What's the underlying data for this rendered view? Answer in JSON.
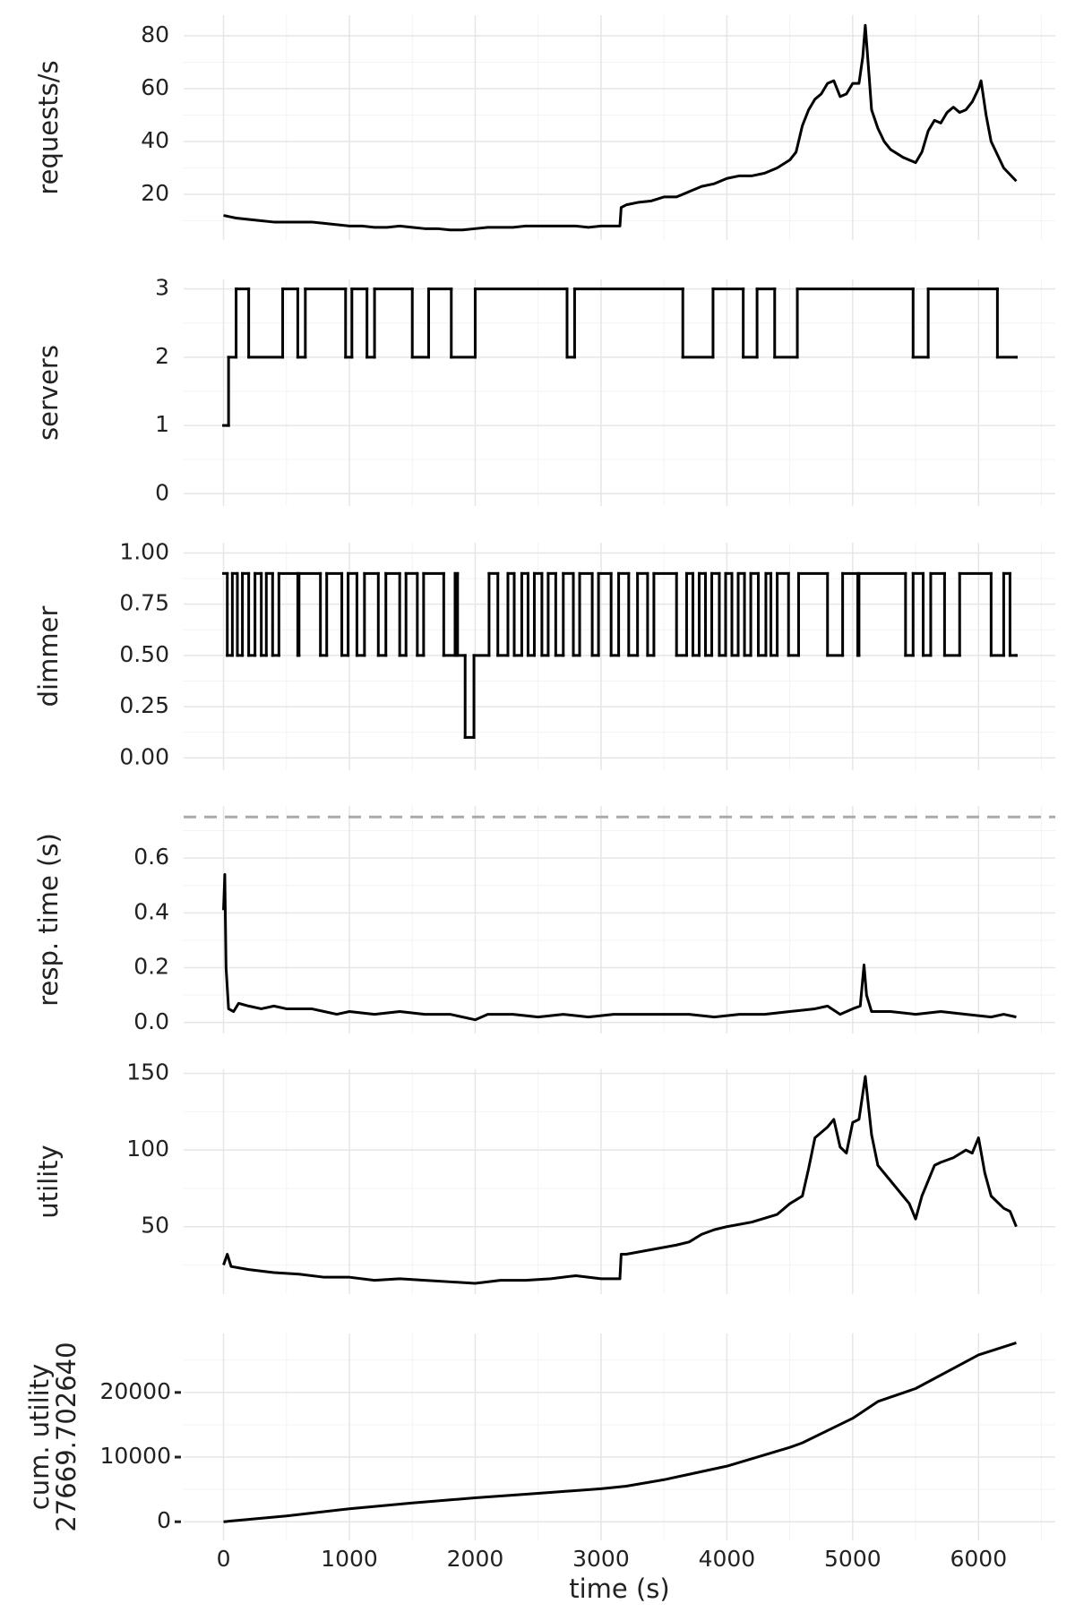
{
  "chart_data": [
    {
      "type": "line",
      "ylabel": "requests/s",
      "color": "#000000",
      "xlim": [
        -317,
        6610
      ],
      "xticks": [
        0,
        1000,
        2000,
        3000,
        4000,
        5000,
        6000
      ],
      "xminor": [
        500,
        1500,
        2500,
        3500,
        4500,
        5500,
        6500
      ],
      "ylim": [
        2.7,
        87.8
      ],
      "yticks": [
        20,
        40,
        60,
        80
      ],
      "yminor": [
        10,
        30,
        50,
        70
      ],
      "x": [
        0,
        100,
        200,
        300,
        400,
        500,
        600,
        700,
        800,
        900,
        1000,
        1100,
        1200,
        1300,
        1400,
        1500,
        1600,
        1700,
        1800,
        1900,
        2000,
        2100,
        2200,
        2300,
        2400,
        2500,
        2600,
        2700,
        2800,
        2900,
        3000,
        3100,
        3150,
        3160,
        3200,
        3300,
        3400,
        3500,
        3600,
        3700,
        3800,
        3900,
        4000,
        4100,
        4200,
        4300,
        4400,
        4500,
        4550,
        4600,
        4650,
        4700,
        4750,
        4800,
        4850,
        4900,
        4950,
        5000,
        5050,
        5080,
        5100,
        5130,
        5150,
        5200,
        5250,
        5300,
        5400,
        5500,
        5550,
        5600,
        5650,
        5700,
        5750,
        5800,
        5850,
        5900,
        5950,
        6000,
        6020,
        6060,
        6100,
        6150,
        6200,
        6300
      ],
      "values": [
        12,
        11,
        10.5,
        10,
        9.5,
        9.5,
        9.5,
        9.5,
        9,
        8.5,
        8,
        8,
        7.5,
        7.5,
        8,
        7.5,
        7,
        7,
        6.5,
        6.5,
        7,
        7.5,
        7.5,
        7.5,
        8,
        8,
        8,
        8,
        8,
        7.5,
        8,
        8,
        8,
        15,
        16,
        17,
        17.5,
        19,
        19,
        21,
        23,
        24,
        26,
        27,
        27,
        28,
        30,
        33,
        36,
        46,
        52,
        56,
        58,
        62,
        63,
        57,
        58,
        62,
        62,
        72,
        84,
        65,
        52,
        45,
        40,
        37,
        34,
        32,
        36,
        44,
        48,
        47,
        51,
        53,
        51,
        52,
        55,
        60,
        63,
        50,
        40,
        35,
        30,
        25
      ]
    },
    {
      "type": "line",
      "step": "post",
      "ylabel": "servers",
      "color": "#000000",
      "xlim": [
        -317,
        6610
      ],
      "xticks": [
        0,
        1000,
        2000,
        3000,
        4000,
        5000,
        6000
      ],
      "xminor": [
        500,
        1500,
        2500,
        3500,
        4500,
        5500,
        6500
      ],
      "ylim": [
        -0.18,
        3.14
      ],
      "yticks": [
        0,
        1,
        2,
        3
      ],
      "yminor": [
        0.5,
        1.5,
        2.5
      ],
      "x": [
        0,
        40,
        100,
        200,
        470,
        590,
        650,
        970,
        1020,
        1140,
        1200,
        1500,
        1630,
        1810,
        2000,
        2730,
        2790,
        3650,
        3890,
        4130,
        4240,
        4380,
        4560,
        5480,
        5600,
        6150,
        6300
      ],
      "values": [
        1,
        2,
        3,
        2,
        3,
        2,
        3,
        2,
        3,
        2,
        3,
        2,
        3,
        2,
        3,
        2,
        3,
        2,
        3,
        2,
        3,
        2,
        3,
        2,
        3,
        2,
        2
      ]
    },
    {
      "type": "line",
      "step": "post",
      "ylabel": "dimmer",
      "color": "#000000",
      "xlim": [
        -317,
        6610
      ],
      "xticks": [
        0,
        1000,
        2000,
        3000,
        4000,
        5000,
        6000
      ],
      "xminor": [
        500,
        1500,
        2500,
        3500,
        4500,
        5500,
        6500
      ],
      "ylim": [
        -0.06,
        1.05
      ],
      "yticks": [
        {
          "value": 0,
          "label": "0.00"
        },
        {
          "value": 0.25,
          "label": "0.25"
        },
        {
          "value": 0.5,
          "label": "0.50"
        },
        {
          "value": 0.75,
          "label": "0.75"
        },
        {
          "value": 1,
          "label": "1.00"
        }
      ],
      "yminor": [
        0.125,
        0.375,
        0.625,
        0.875
      ],
      "x": [
        0,
        30,
        70,
        110,
        150,
        200,
        250,
        300,
        340,
        390,
        440,
        590,
        600,
        770,
        820,
        940,
        990,
        1060,
        1120,
        1230,
        1290,
        1400,
        1450,
        1540,
        1590,
        1750,
        1840,
        1860,
        1920,
        1990,
        2110,
        2180,
        2260,
        2310,
        2370,
        2420,
        2470,
        2530,
        2580,
        2640,
        2700,
        2780,
        2830,
        2930,
        2980,
        3080,
        3140,
        3220,
        3290,
        3370,
        3420,
        3600,
        3680,
        3730,
        3780,
        3830,
        3880,
        3940,
        3990,
        4040,
        4090,
        4140,
        4190,
        4250,
        4310,
        4350,
        4400,
        4490,
        4570,
        4800,
        4920,
        5040,
        5050,
        5420,
        5480,
        5560,
        5620,
        5730,
        5850,
        6100,
        6200,
        6250,
        6300
      ],
      "values": [
        0.9,
        0.5,
        0.9,
        0.5,
        0.9,
        0.5,
        0.9,
        0.5,
        0.9,
        0.5,
        0.9,
        0.5,
        0.9,
        0.5,
        0.9,
        0.5,
        0.9,
        0.5,
        0.9,
        0.5,
        0.9,
        0.5,
        0.9,
        0.5,
        0.9,
        0.5,
        0.9,
        0.5,
        0.1,
        0.5,
        0.9,
        0.5,
        0.9,
        0.5,
        0.9,
        0.5,
        0.9,
        0.5,
        0.9,
        0.5,
        0.9,
        0.5,
        0.9,
        0.5,
        0.9,
        0.5,
        0.9,
        0.5,
        0.9,
        0.5,
        0.9,
        0.5,
        0.9,
        0.5,
        0.9,
        0.5,
        0.9,
        0.5,
        0.9,
        0.5,
        0.9,
        0.5,
        0.9,
        0.5,
        0.9,
        0.5,
        0.9,
        0.5,
        0.9,
        0.5,
        0.9,
        0.5,
        0.9,
        0.5,
        0.9,
        0.5,
        0.9,
        0.5,
        0.9,
        0.5,
        0.9,
        0.5,
        0.5
      ]
    },
    {
      "type": "line",
      "ylabel": "resp. time (s)",
      "color": "#000000",
      "hline": 0.75,
      "hline_color": "#aaaaaa",
      "xlim": [
        -317,
        6610
      ],
      "xticks": [
        0,
        1000,
        2000,
        3000,
        4000,
        5000,
        6000
      ],
      "xminor": [
        500,
        1500,
        2500,
        3500,
        4500,
        5500,
        6500
      ],
      "ylim": [
        -0.04,
        0.79
      ],
      "yticks": [
        {
          "value": 0,
          "label": "0.0"
        },
        {
          "value": 0.2,
          "label": "0.2"
        },
        {
          "value": 0.4,
          "label": "0.4"
        },
        {
          "value": 0.6,
          "label": "0.6"
        }
      ],
      "yminor": [
        0.1,
        0.3,
        0.5,
        0.7
      ],
      "x": [
        0,
        10,
        20,
        40,
        80,
        120,
        200,
        300,
        400,
        500,
        600,
        700,
        800,
        900,
        1000,
        1200,
        1400,
        1600,
        1800,
        2000,
        2100,
        2300,
        2500,
        2700,
        2900,
        3100,
        3300,
        3500,
        3700,
        3900,
        4100,
        4300,
        4500,
        4700,
        4800,
        4900,
        5000,
        5060,
        5090,
        5110,
        5150,
        5300,
        5500,
        5700,
        5900,
        6100,
        6200,
        6300
      ],
      "values": [
        0.41,
        0.54,
        0.2,
        0.05,
        0.04,
        0.07,
        0.06,
        0.05,
        0.06,
        0.05,
        0.05,
        0.05,
        0.04,
        0.03,
        0.04,
        0.03,
        0.04,
        0.03,
        0.03,
        0.01,
        0.03,
        0.03,
        0.02,
        0.03,
        0.02,
        0.03,
        0.03,
        0.03,
        0.03,
        0.02,
        0.03,
        0.03,
        0.04,
        0.05,
        0.06,
        0.03,
        0.05,
        0.06,
        0.21,
        0.1,
        0.04,
        0.04,
        0.03,
        0.04,
        0.03,
        0.02,
        0.03,
        0.02
      ]
    },
    {
      "type": "line",
      "ylabel": "utility",
      "color": "#000000",
      "xlim": [
        -317,
        6610
      ],
      "xticks": [
        0,
        1000,
        2000,
        3000,
        4000,
        5000,
        6000
      ],
      "xminor": [
        500,
        1500,
        2500,
        3500,
        4500,
        5500,
        6500
      ],
      "ylim": [
        6,
        152.7
      ],
      "yticks": [
        50,
        100,
        150
      ],
      "yminor": [
        25,
        75,
        125
      ],
      "x": [
        0,
        30,
        60,
        200,
        400,
        600,
        800,
        1000,
        1200,
        1400,
        1600,
        1800,
        2000,
        2200,
        2400,
        2600,
        2800,
        3000,
        3150,
        3160,
        3200,
        3400,
        3600,
        3700,
        3800,
        3900,
        4000,
        4200,
        4400,
        4500,
        4600,
        4650,
        4700,
        4800,
        4850,
        4900,
        4950,
        5000,
        5050,
        5100,
        5150,
        5200,
        5300,
        5400,
        5450,
        5500,
        5550,
        5600,
        5650,
        5700,
        5800,
        5900,
        5950,
        6000,
        6050,
        6100,
        6200,
        6250,
        6300
      ],
      "values": [
        25,
        32,
        24,
        22,
        20,
        19,
        17,
        17,
        15,
        16,
        15,
        14,
        13,
        15,
        15,
        16,
        18,
        16,
        16,
        32,
        32,
        35,
        38,
        40,
        45,
        48,
        50,
        53,
        58,
        65,
        70,
        88,
        108,
        115,
        120,
        102,
        98,
        118,
        120,
        148,
        110,
        90,
        80,
        70,
        65,
        55,
        70,
        80,
        90,
        92,
        95,
        100,
        98,
        108,
        85,
        70,
        62,
        60,
        50
      ]
    },
    {
      "type": "line",
      "ylabel": [
        "cum. utility",
        "27669.702640"
      ],
      "xlabel": "time (s)",
      "xtick_labels": true,
      "ytick_marks": true,
      "color": "#000000",
      "xlim": [
        -317,
        6610
      ],
      "xticks": [
        0,
        1000,
        2000,
        3000,
        4000,
        5000,
        6000
      ],
      "xminor": [
        500,
        1500,
        2500,
        3500,
        4500,
        5500,
        6500
      ],
      "ylim": [
        -2880,
        29120
      ],
      "yticks": [
        0,
        10000,
        20000
      ],
      "yminor": [
        5000,
        15000,
        25000
      ],
      "x": [
        0,
        500,
        1000,
        1500,
        2000,
        2500,
        3000,
        3200,
        3500,
        4000,
        4500,
        4600,
        5000,
        5200,
        5500,
        6000,
        6300
      ],
      "values": [
        0,
        900,
        2000,
        2900,
        3700,
        4400,
        5100,
        5500,
        6500,
        8600,
        11500,
        12200,
        16000,
        18600,
        20600,
        25800,
        27669.7
      ]
    }
  ]
}
